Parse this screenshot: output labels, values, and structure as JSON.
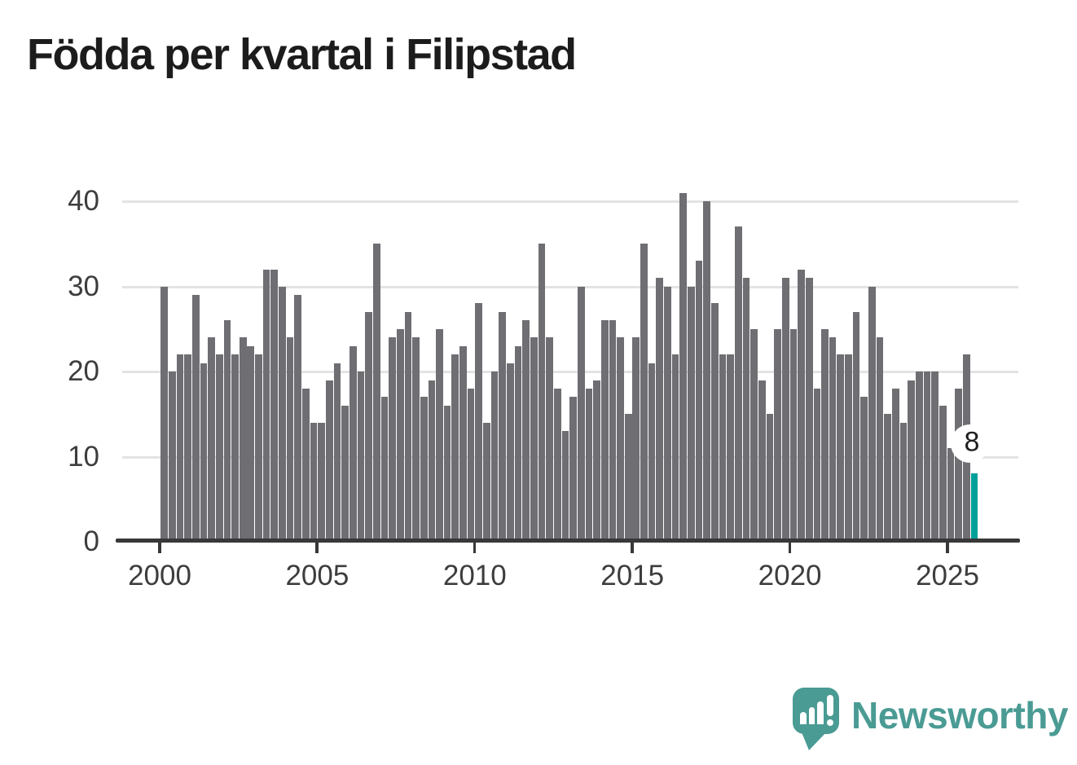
{
  "title": "Födda per kvartal i Filipstad",
  "logo": {
    "text": "Newsworthy"
  },
  "chart_data": {
    "type": "bar",
    "title": "Födda per kvartal i Filipstad",
    "frequency": "quarterly",
    "x_start": "2000-Q1",
    "x_end": "2025-Q4",
    "values": [
      30,
      20,
      22,
      22,
      29,
      21,
      24,
      22,
      26,
      22,
      24,
      23,
      22,
      32,
      32,
      30,
      24,
      29,
      18,
      14,
      14,
      19,
      21,
      16,
      23,
      20,
      27,
      35,
      17,
      24,
      25,
      27,
      24,
      17,
      19,
      25,
      16,
      22,
      23,
      18,
      28,
      14,
      20,
      27,
      21,
      23,
      26,
      24,
      35,
      24,
      18,
      13,
      17,
      30,
      18,
      19,
      26,
      26,
      24,
      15,
      24,
      35,
      21,
      31,
      30,
      22,
      41,
      30,
      33,
      40,
      28,
      22,
      22,
      37,
      31,
      25,
      19,
      15,
      25,
      31,
      25,
      32,
      31,
      18,
      25,
      24,
      22,
      22,
      27,
      17,
      30,
      24,
      15,
      18,
      14,
      19,
      20,
      20,
      20,
      16,
      11,
      18,
      22,
      8
    ],
    "yticks": [
      0,
      10,
      20,
      30,
      40
    ],
    "xticks": [
      2000,
      2005,
      2010,
      2015,
      2020,
      2025
    ],
    "ylim": [
      0,
      43
    ],
    "grid": true,
    "legend": false,
    "bar_color": "#6e6e73",
    "highlight_color": "#00a09a",
    "highlight_index": 103,
    "annotation": {
      "text": "8",
      "value": 8,
      "index": 103
    }
  }
}
